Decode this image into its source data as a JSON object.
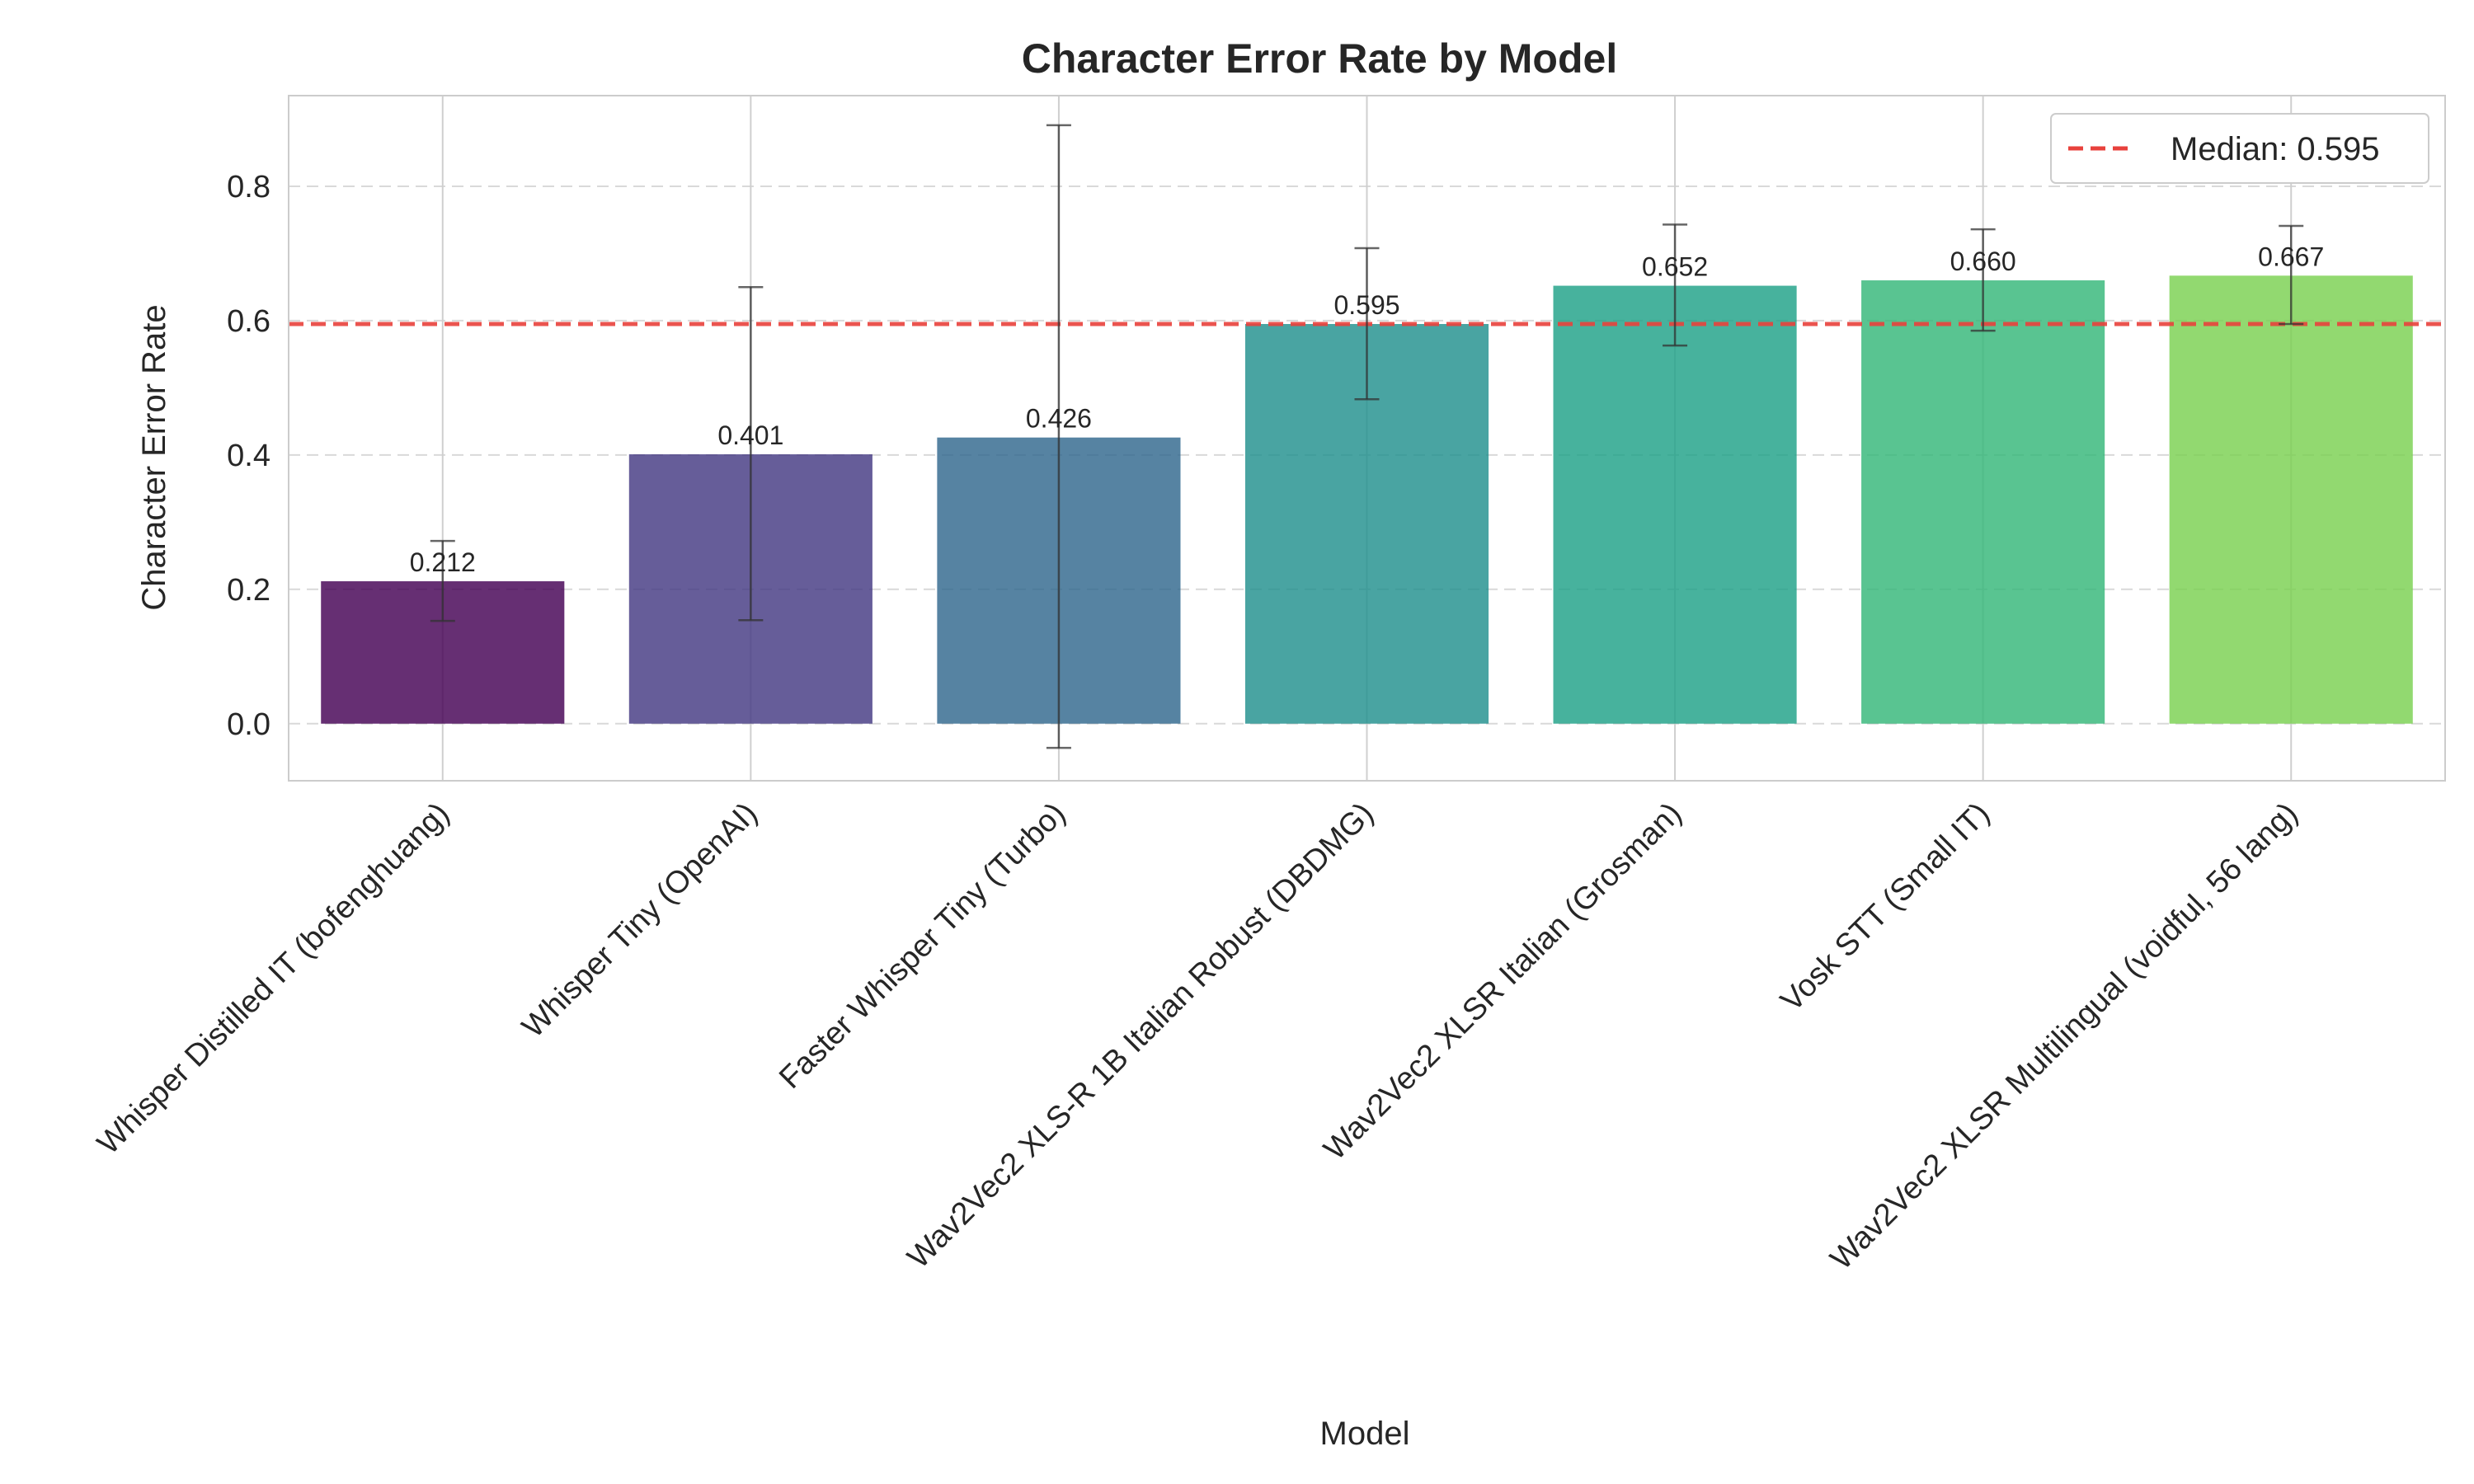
{
  "chart_data": {
    "type": "bar",
    "title": "Character Error Rate by Model",
    "xlabel": "Model",
    "ylabel": "Character Error Rate",
    "ylim": [
      -0.085,
      0.935
    ],
    "yticks": [
      0.0,
      0.2,
      0.4,
      0.6,
      0.8
    ],
    "ytick_labels": [
      "0.0",
      "0.2",
      "0.4",
      "0.6",
      "0.8"
    ],
    "grid": "y-dashed, x-solid",
    "categories": [
      "Whisper Distilled IT (bofenghuang)",
      "Whisper Tiny (OpenAI)",
      "Faster Whisper Tiny (Turbo)",
      "Wav2Vec2 XLS-R 1B Italian Robust (DBDMG)",
      "Wav2Vec2 XLSR Italian (Grosman)",
      "Vosk STT (Small IT)",
      "Wav2Vec2 XLSR Multilingual (voidful, 56 lang)"
    ],
    "values": [
      0.212,
      0.401,
      0.426,
      0.595,
      0.652,
      0.66,
      0.667
    ],
    "value_labels": [
      "0.212",
      "0.401",
      "0.426",
      "0.595",
      "0.652",
      "0.660",
      "0.667"
    ],
    "error_low": [
      0.153,
      0.154,
      -0.036,
      0.483,
      0.563,
      0.585,
      0.595
    ],
    "error_high": [
      0.272,
      0.65,
      0.891,
      0.708,
      0.743,
      0.736,
      0.741
    ],
    "colors": [
      "#440154",
      "#443983",
      "#31688e",
      "#21908d",
      "#1fa187",
      "#35b779",
      "#7ad151"
    ],
    "median": {
      "value": 0.595,
      "label": "Median: 0.595",
      "color": "#e8413c"
    },
    "legend_position": "top-right"
  }
}
